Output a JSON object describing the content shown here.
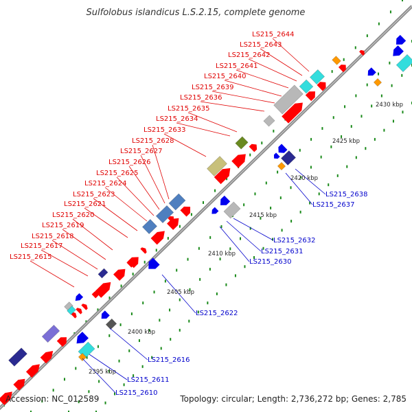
{
  "title": "Sulfolobus islandicus L.S.2.15, complete genome",
  "accession": "Accession: NC_012589",
  "topology": "Topology: circular; Length: 2,736,272 bp; Genes: 2,785",
  "colors": {
    "forward_label": "#e00000",
    "reverse_label": "#0000cc",
    "backbone": "#7f7f7f",
    "tick": "#1a8a1a",
    "forward_gene": "#ff0000",
    "reverse_gene": "#0000ee",
    "cyan": "#33dddd",
    "steelblue": "#4f7fbf",
    "olive": "#c8c07a",
    "darkgreen": "#6a8a20",
    "navy": "#2a2a90",
    "lavender": "#7b6fd6",
    "orange": "#ff9900",
    "grey": "#b8b8b8"
  },
  "scale_labels": [
    "2395 kbp",
    "2400 kbp",
    "2405 kbp",
    "2410 kbp",
    "2415 kbp",
    "2420 kbp",
    "2425 kbp",
    "2430 kbp"
  ],
  "forward_labels": [
    "LS215_2644",
    "LS215_2643",
    "LS215_2642",
    "LS215_2641",
    "LS215_2640",
    "LS215_2639",
    "LS215_2636",
    "LS215_2635",
    "LS215_2634",
    "LS215_2633",
    "LS215_2628",
    "LS215_2627",
    "LS215_2626",
    "LS215_2625",
    "LS215_2624",
    "LS215_2623",
    "LS215_2621",
    "LS215_2620",
    "LS215_2619",
    "LS215_2618",
    "LS215_2617",
    "LS215_2615"
  ],
  "reverse_labels": [
    "LS215_2638",
    "LS215_2637",
    "LS215_2632",
    "LS215_2631",
    "LS215_2630",
    "LS215_2622",
    "LS215_2616",
    "LS215_2611",
    "LS215_2610"
  ]
}
